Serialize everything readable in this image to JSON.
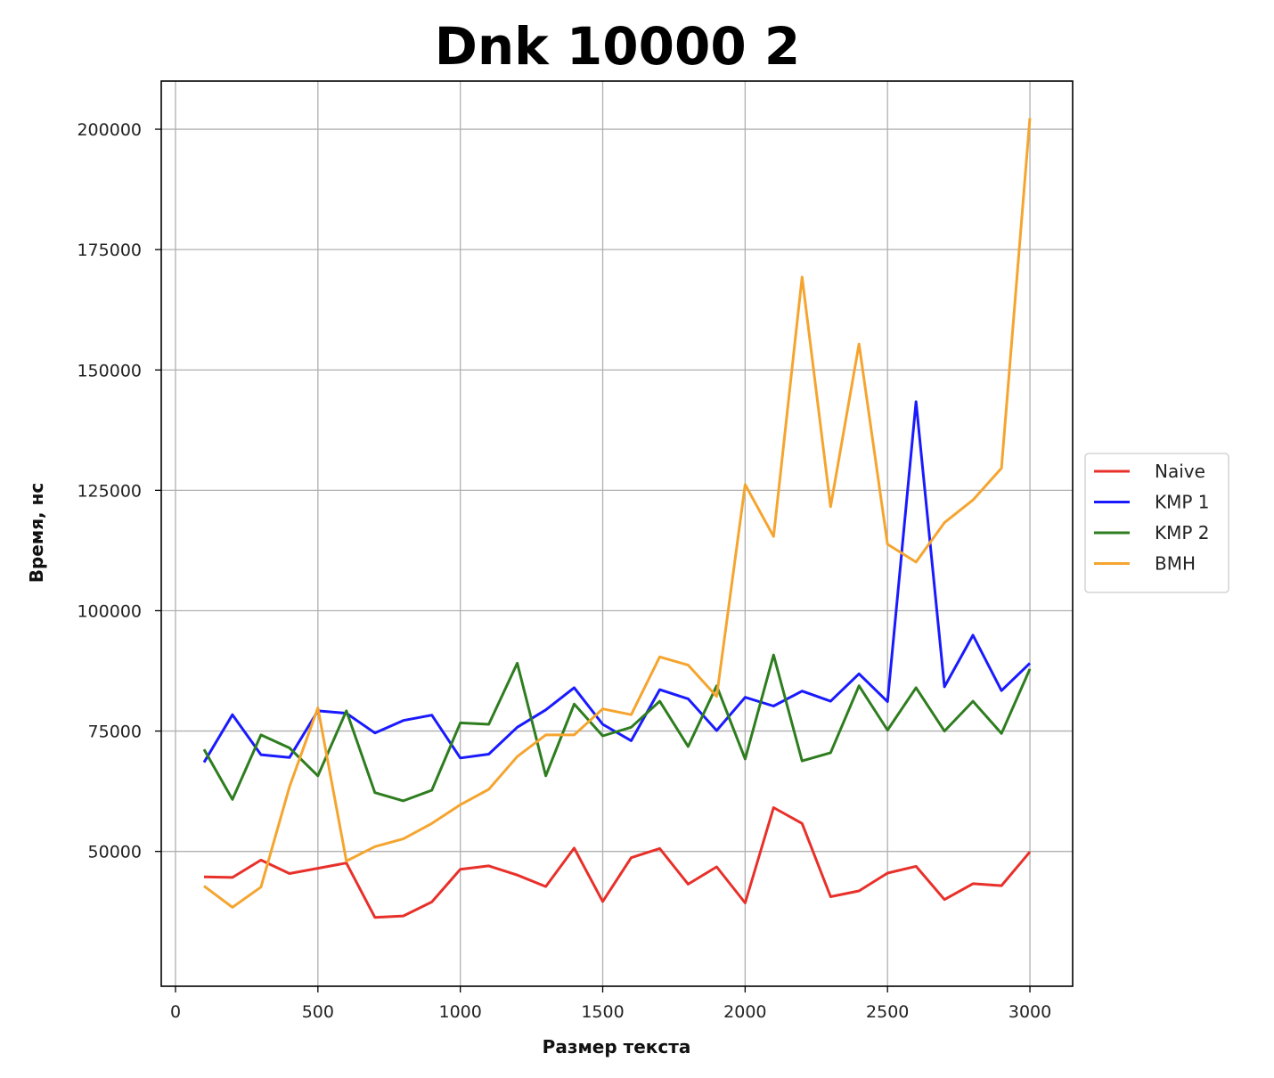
{
  "chart_data": {
    "type": "line",
    "title": "Dnk 10000 2",
    "xlabel": "Размер текста",
    "ylabel": "Время, нс",
    "xlim": [
      -50,
      3150
    ],
    "ylim": [
      22000,
      210000
    ],
    "xticks": [
      0,
      500,
      1000,
      1500,
      2000,
      2500,
      3000
    ],
    "yticks": [
      50000,
      75000,
      100000,
      125000,
      150000,
      175000,
      200000
    ],
    "grid": true,
    "legend_position": "right",
    "x": [
      100,
      200,
      300,
      400,
      500,
      600,
      700,
      800,
      900,
      1000,
      1100,
      1200,
      1300,
      1400,
      1500,
      1600,
      1700,
      1800,
      1900,
      2000,
      2100,
      2200,
      2300,
      2400,
      2500,
      2600,
      2700,
      2800,
      2900,
      3000
    ],
    "series": [
      {
        "name": "Naive",
        "color": "#e8302a",
        "values": [
          44700,
          44600,
          48200,
          45400,
          46500,
          47600,
          36300,
          36600,
          39500,
          46300,
          47000,
          45100,
          42700,
          50700,
          39600,
          48700,
          50600,
          43200,
          46800,
          39300,
          59100,
          55800,
          40600,
          41800,
          45500,
          46900,
          40000,
          43300,
          42900,
          49900
        ]
      },
      {
        "name": "KMP 1",
        "color": "#1a1aff",
        "values": [
          68500,
          78400,
          70100,
          69500,
          79200,
          78700,
          74600,
          77200,
          78300,
          69400,
          70200,
          75800,
          79400,
          84000,
          76400,
          73000,
          83600,
          81700,
          75100,
          82000,
          80200,
          83300,
          81200,
          86900,
          81100,
          143400,
          84200,
          94900,
          83400,
          89100
        ]
      },
      {
        "name": "KMP 2",
        "color": "#2e7d1f",
        "values": [
          71200,
          60800,
          74200,
          71500,
          65700,
          79200,
          62200,
          60500,
          62700,
          76700,
          76400,
          89100,
          65700,
          80600,
          74000,
          75800,
          81200,
          71800,
          84400,
          69200,
          90800,
          68800,
          70500,
          84400,
          75200,
          84000,
          75000,
          81200,
          74500,
          87900
        ]
      },
      {
        "name": "BMH",
        "color": "#f5a52f",
        "values": [
          42800,
          38400,
          42600,
          63400,
          79800,
          48000,
          51000,
          52600,
          55800,
          59700,
          62900,
          69700,
          74200,
          74200,
          79600,
          78400,
          90400,
          88700,
          82200,
          126200,
          115400,
          169300,
          121600,
          155400,
          113800,
          110100,
          118300,
          123000,
          129600,
          202300
        ]
      }
    ]
  }
}
